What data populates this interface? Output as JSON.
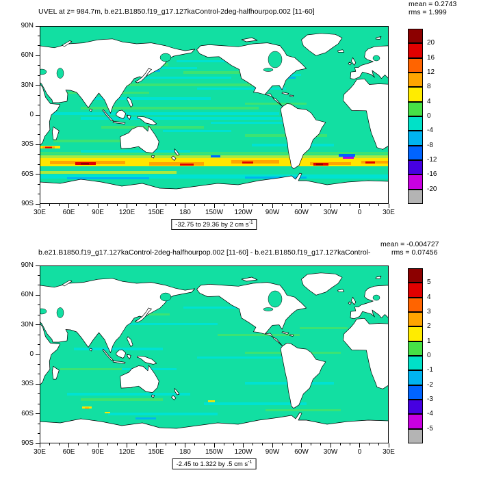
{
  "figure": {
    "background": "#ffffff"
  },
  "axes": {
    "lat_ticks": [
      "90N",
      "60N",
      "30N",
      "0",
      "30S",
      "60S",
      "90S"
    ],
    "lon_ticks": [
      "30E",
      "60E",
      "90E",
      "120E",
      "150E",
      "180",
      "150W",
      "120W",
      "90W",
      "60W",
      "30W",
      "0",
      "30E"
    ]
  },
  "panels": [
    {
      "title": "UVEL at z= 984.7m, b.e21.B1850.f19_g17.127kaControl-2deg-halfhourpop.002 [11-60]",
      "mean_label": "mean = 0.2743",
      "rms_label": "rms = 1.999",
      "range_label": "-32.75 to 29.36 by 2 cm s",
      "range_sup": "-1",
      "colorbar": {
        "labels": [
          "20",
          "16",
          "12",
          "8",
          "4",
          "0",
          "-4",
          "-8",
          "-12",
          "-16",
          "-20"
        ],
        "colors": [
          "#8c0000",
          "#e10000",
          "#ff6400",
          "#ffa500",
          "#ffec00",
          "#46e146",
          "#00e1c8",
          "#00b4f0",
          "#0064ff",
          "#4600e1",
          "#c800e1",
          "#b4b4b4"
        ]
      }
    },
    {
      "title": "b.e21.B1850.f19_g17.127kaControl-2deg-halfhourpop.002 [11-60] - b.e21.B1850.f19_g17.127kaControl-",
      "mean_label": "mean = -0.004727",
      "rms_label": "rms = 0.07456",
      "range_label": "-2.45 to 1.322 by .5 cm s",
      "range_sup": "-1",
      "colorbar": {
        "labels": [
          "5",
          "4",
          "3",
          "2",
          "1",
          "0",
          "-1",
          "-2",
          "-3",
          "-4",
          "-5"
        ],
        "colors": [
          "#8c0000",
          "#e10000",
          "#ff6400",
          "#ffa500",
          "#ffec00",
          "#46e146",
          "#00e1c8",
          "#00b4f0",
          "#0064ff",
          "#4600e1",
          "#c800e1",
          "#b4b4b4"
        ]
      }
    }
  ],
  "chart_data": [
    {
      "type": "heatmap",
      "title": "UVEL at z= 984.7m, b.e21.B1850.f19_g17.127kaControl-2deg-halfhourpop.002 [11-60]",
      "variable": "UVEL",
      "depth_label": "z= 984.7m",
      "units": "cm s-1",
      "stats": {
        "mean": 0.2743,
        "rms": 1.999
      },
      "field_min": -32.75,
      "field_max": 29.36,
      "contour_interval": 2,
      "colorbar_levels": [
        20,
        16,
        12,
        8,
        4,
        0,
        -4,
        -8,
        -12,
        -16,
        -20
      ],
      "x_ticks": [
        "30E",
        "60E",
        "90E",
        "120E",
        "150E",
        "180",
        "150W",
        "120W",
        "90W",
        "60W",
        "30W",
        "0",
        "30E"
      ],
      "y_ticks": [
        "90N",
        "60N",
        "30N",
        "0",
        "30S",
        "60S",
        "90S"
      ],
      "projection": "global cylindrical equidistant, longitude 30E eastward through 180 to 30E, land masked white",
      "legend_position": "right vertical labelbar",
      "notable_features": "strong eastward jet (yellow/orange/red, up to ~29 cm/s) along ~45-60S Antarctic Circumpolar Current; scattered cyan/green streaks elsewhere; small westward (blue/purple) patches near 40S in the Atlantic sector"
    },
    {
      "type": "heatmap",
      "title": "b.e21.B1850.f19_g17.127kaControl-2deg-halfhourpop.002 [11-60] - b.e21.B1850.f19_g17.127kaControl-",
      "variable": "UVEL difference",
      "units": "cm s-1",
      "stats": {
        "mean": -0.004727,
        "rms": 0.07456
      },
      "field_min": -2.45,
      "field_max": 1.322,
      "contour_interval": 0.5,
      "colorbar_levels": [
        5,
        4,
        3,
        2,
        1,
        0,
        -1,
        -2,
        -3,
        -4,
        -5
      ],
      "x_ticks": [
        "30E",
        "60E",
        "90E",
        "120E",
        "150E",
        "180",
        "150W",
        "120W",
        "90W",
        "60W",
        "30W",
        "0",
        "30E"
      ],
      "y_ticks": [
        "90N",
        "60N",
        "30N",
        "0",
        "30S",
        "60S",
        "90S"
      ],
      "projection": "global cylindrical equidistant, longitude 30E eastward through 180 to 30E, land masked white",
      "legend_position": "right vertical labelbar",
      "notable_features": "near-zero difference field, almost uniform green/cyan with a few tiny yellow specks in the Southern Ocean"
    }
  ]
}
